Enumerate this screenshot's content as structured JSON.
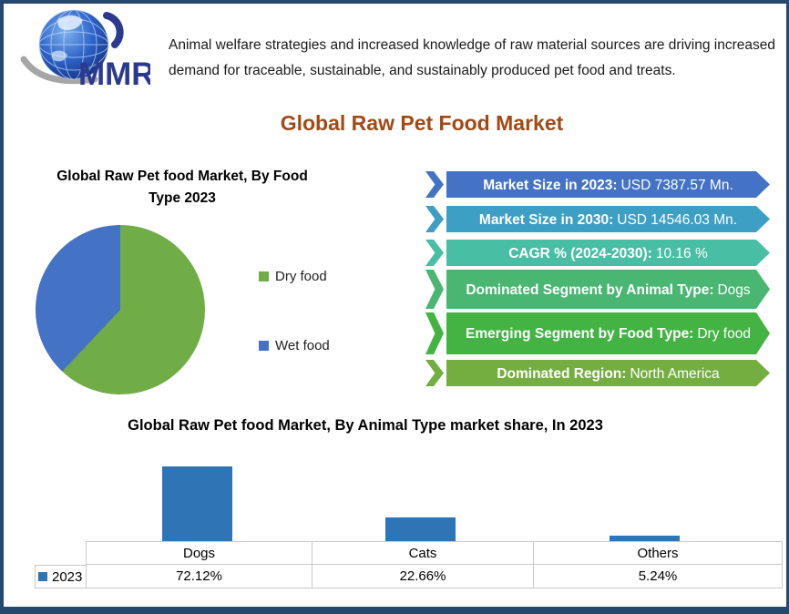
{
  "colors": {
    "frame_border": "#25486E",
    "main_title": "#A04A15",
    "logo_blue": "#2B3990",
    "logo_globe": "#1E50B5",
    "logo_swoosh": "#A6A6A6"
  },
  "logo": {
    "brand": "MMR"
  },
  "tagline": "Animal welfare strategies and increased knowledge of raw material sources are driving increased demand for traceable, sustainable, and sustainably produced pet food and treats.",
  "main_title": "Global Raw Pet Food Market",
  "banners": [
    {
      "label": "Market Size in 2023:",
      "value": "USD 7387.57 Mn.",
      "color": "#4472C4"
    },
    {
      "label": "Market Size in 2030:",
      "value": "USD 14546.03 Mn.",
      "color": "#3E9FC4"
    },
    {
      "label": "CAGR % (2024-2030):",
      "value": "10.16 %",
      "color": "#48BFA5"
    },
    {
      "label": "Dominated Segment by Animal Type:",
      "value": "Dogs",
      "color": "#49B672"
    },
    {
      "label": "Emerging Segment by Food Type:",
      "value": "Dry food",
      "color": "#43B343"
    },
    {
      "label": "Dominated Region:",
      "value": "North America",
      "color": "#74AE41"
    }
  ],
  "chart_data": [
    {
      "type": "pie",
      "title": "Global Raw Pet food Market, By Food Type 2023",
      "labels": [
        "Dry food",
        "Wet food"
      ],
      "values": [
        62,
        38
      ],
      "colors": [
        "#70AD47",
        "#4472C4"
      ],
      "legend_position": "right",
      "note": "slice shares estimated from angles; no numeric labels shown"
    },
    {
      "type": "bar",
      "title": "Global Raw Pet food Market, By Animal Type market share, In 2023",
      "categories": [
        "Dogs",
        "Cats",
        "Others"
      ],
      "series": [
        {
          "name": "2023",
          "values": [
            72.12,
            22.66,
            5.24
          ]
        }
      ],
      "value_labels": [
        "72.12%",
        "22.66%",
        "5.24%"
      ],
      "bar_color": "#2E75B6",
      "ylabel": "",
      "xlabel": "",
      "ylim": [
        0,
        80
      ],
      "grid": false,
      "data_table": true,
      "legend_position": "bottom-left"
    }
  ]
}
